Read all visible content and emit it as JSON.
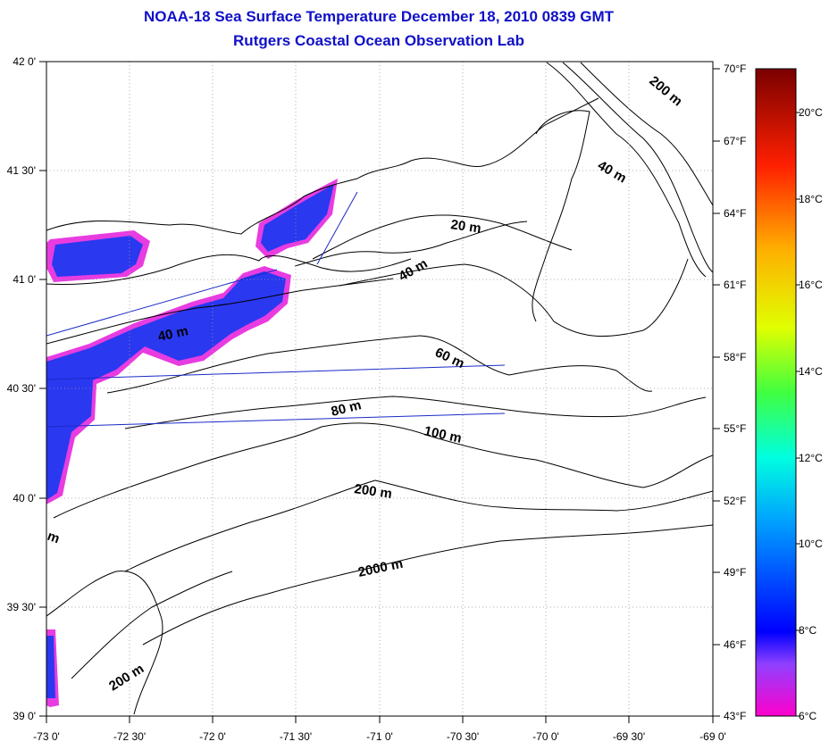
{
  "header": {
    "title": "NOAA-18 Sea Surface Temperature December 18, 2010 0839 GMT",
    "subtitle": "Rutgers Coastal Ocean Observation Lab"
  },
  "axes": {
    "x_ticks": [
      "-73 0'",
      "-72 30'",
      "-72 0'",
      "-71 30'",
      "-71 0'",
      "-70 30'",
      "-70 0'",
      "-69 30'",
      "-69 0'"
    ],
    "y_ticks": [
      "42 0'",
      "41 30'",
      "41 0'",
      "40 30'",
      "40 0'",
      "39 30'",
      "39 0'"
    ]
  },
  "contours": [
    "200 m",
    "40 m",
    "20 m",
    "40 m",
    "40 m",
    "60 m",
    "80 m",
    "100 m",
    "200 m",
    "2000 m",
    "200 m",
    "m"
  ],
  "colorbar": {
    "fahrenheit": [
      "70°F",
      "67°F",
      "64°F",
      "61°F",
      "58°F",
      "55°F",
      "52°F",
      "49°F",
      "46°F",
      "43°F"
    ],
    "celsius": [
      "20°C",
      "18°C",
      "16°C",
      "14°C",
      "12°C",
      "10°C",
      "8°C",
      "6°C"
    ]
  },
  "colors": {
    "title": "#1010c8",
    "sst_main": "#2a38f0",
    "sst_edge": "#e83ce0",
    "track_line": "#1a2ac8"
  }
}
